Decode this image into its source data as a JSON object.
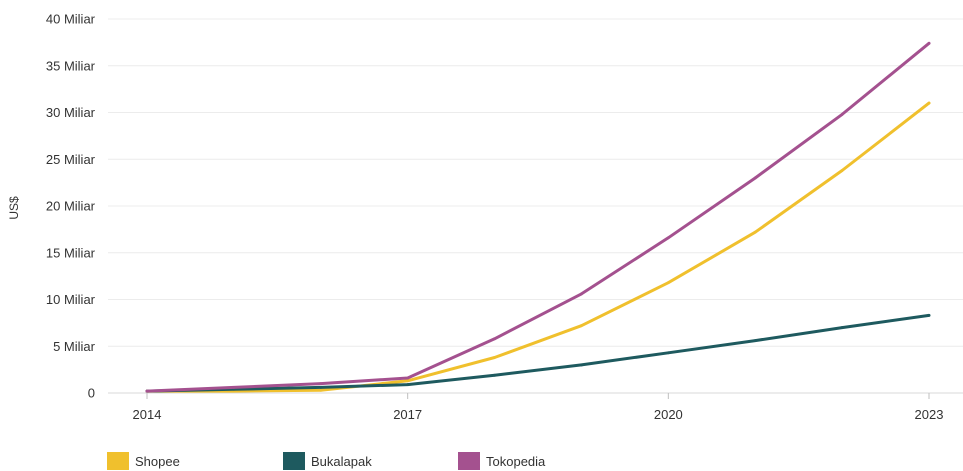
{
  "chart_data": {
    "type": "line",
    "title": "",
    "xlabel": "",
    "ylabel": "US$",
    "x": [
      2014,
      2015,
      2016,
      2017,
      2018,
      2019,
      2020,
      2021,
      2022,
      2023
    ],
    "xticks": [
      2014,
      2017,
      2020,
      2023
    ],
    "ylim": [
      0,
      40
    ],
    "yticks": [
      {
        "value": 0,
        "label": "0"
      },
      {
        "value": 5,
        "label": "5 Miliar"
      },
      {
        "value": 10,
        "label": "10 Miliar"
      },
      {
        "value": 15,
        "label": "15 Miliar"
      },
      {
        "value": 20,
        "label": "20 Miliar"
      },
      {
        "value": 25,
        "label": "25 Miliar"
      },
      {
        "value": 30,
        "label": "30 Miliar"
      },
      {
        "value": 35,
        "label": "35 Miliar"
      },
      {
        "value": 40,
        "label": "40 Miliar"
      }
    ],
    "grid": true,
    "legend": "bottom",
    "series": [
      {
        "name": "Shopee",
        "color": "#f0c02d",
        "values": [
          0.2,
          0.2,
          0.3,
          1.3,
          3.8,
          7.2,
          11.8,
          17.2,
          23.8,
          31.0
        ]
      },
      {
        "name": "Bukalapak",
        "color": "#1e5a5f",
        "values": [
          0.2,
          0.4,
          0.6,
          0.9,
          1.9,
          3.0,
          4.3,
          5.6,
          7.0,
          8.3
        ]
      },
      {
        "name": "Tokopedia",
        "color": "#a4518f",
        "values": [
          0.2,
          0.6,
          1.0,
          1.6,
          5.8,
          10.6,
          16.6,
          23.0,
          29.8,
          37.4
        ]
      }
    ]
  }
}
